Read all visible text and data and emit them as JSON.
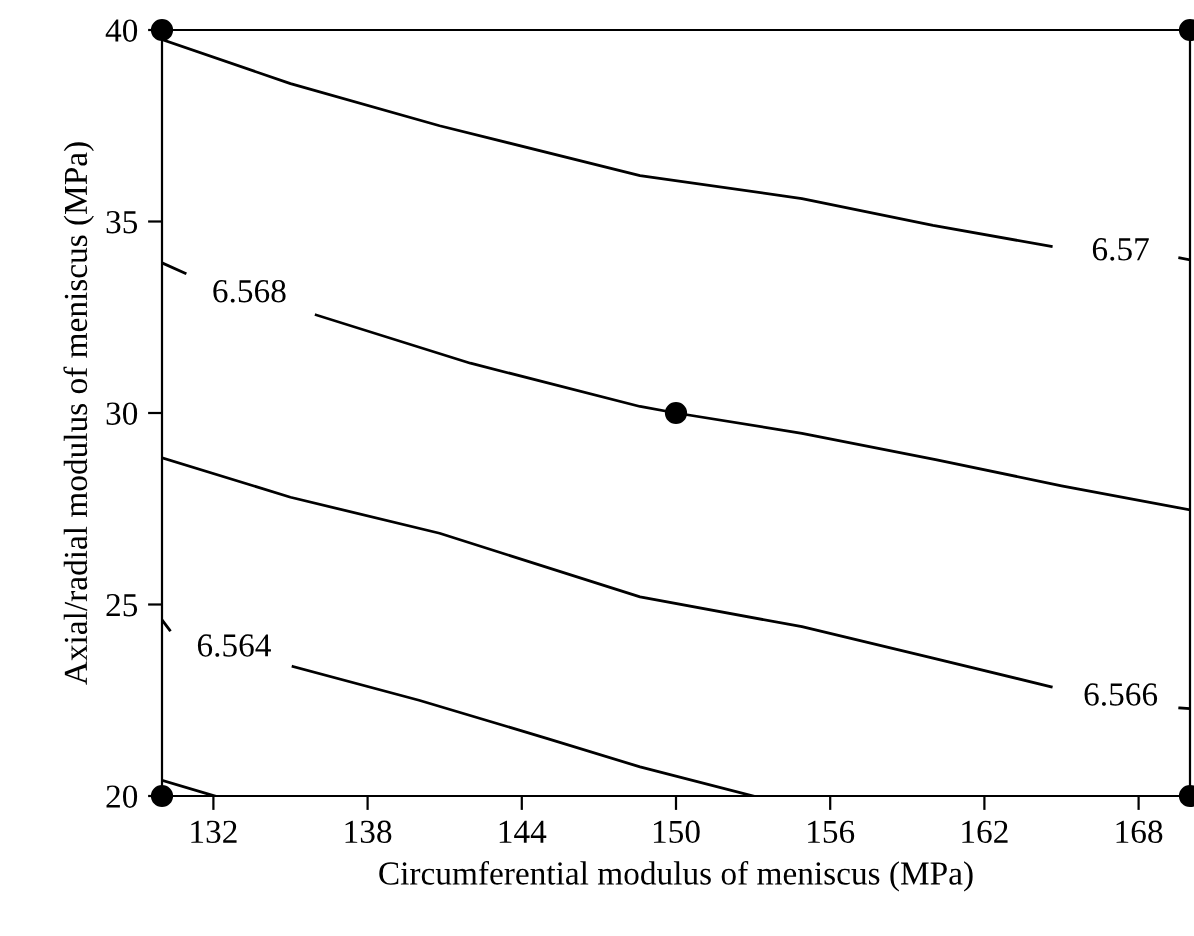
{
  "chart_data": {
    "type": "line",
    "xlabel": "Circumferential modulus of meniscus (MPa)",
    "ylabel": "Axial/radial modulus of meniscus (MPa)",
    "xlim": [
      130,
      170
    ],
    "ylim": [
      20,
      40
    ],
    "xticks": [
      132,
      138,
      144,
      150,
      156,
      162,
      168
    ],
    "yticks": [
      20,
      25,
      30,
      35,
      40
    ],
    "grid": false,
    "marker": "none",
    "line_style": "solid",
    "series": [
      {
        "name": "6.57",
        "color": "#000000",
        "x": [
          130,
          135,
          140.8,
          148.6,
          154.9,
          160,
          164.6,
          167.3,
          169.6,
          170
        ],
        "values": [
          39.75,
          38.6,
          37.5,
          36.2,
          35.6,
          34.9,
          34.35,
          null,
          34.05,
          34.0
        ]
      },
      {
        "name": "6.568",
        "color": "#000000",
        "x": [
          130,
          130.9,
          133.4,
          136.0,
          142,
          148.6,
          150,
          154.9,
          160.1,
          165,
          170
        ],
        "values": [
          33.92,
          33.65,
          null,
          32.56,
          31.3,
          30.17,
          30,
          29.47,
          28.78,
          28.1,
          27.47
        ]
      },
      {
        "name": "6.566",
        "color": "#000000",
        "x": [
          130,
          135,
          140.8,
          148.6,
          154.9,
          160,
          164.6,
          167.3,
          169.6,
          170
        ],
        "values": [
          28.83,
          27.8,
          26.86,
          25.2,
          24.42,
          23.6,
          22.85,
          null,
          22.3,
          22.28
        ]
      },
      {
        "name": "6.564",
        "color": "#000000",
        "x": [
          130,
          130.3,
          132.8,
          135.1,
          140,
          145,
          148.6,
          153.0
        ],
        "values": [
          24.6,
          24.33,
          null,
          23.38,
          22.5,
          21.5,
          20.76,
          20.0
        ]
      },
      {
        "color": "#000000",
        "x": [
          130,
          132.05
        ],
        "values": [
          20.41,
          20.0
        ]
      },
      {
        "type": "scatter",
        "color": "#000000",
        "marker": "circle",
        "x": [
          130,
          170,
          150,
          130,
          170
        ],
        "values": [
          40,
          40,
          30,
          20,
          20
        ]
      }
    ]
  }
}
